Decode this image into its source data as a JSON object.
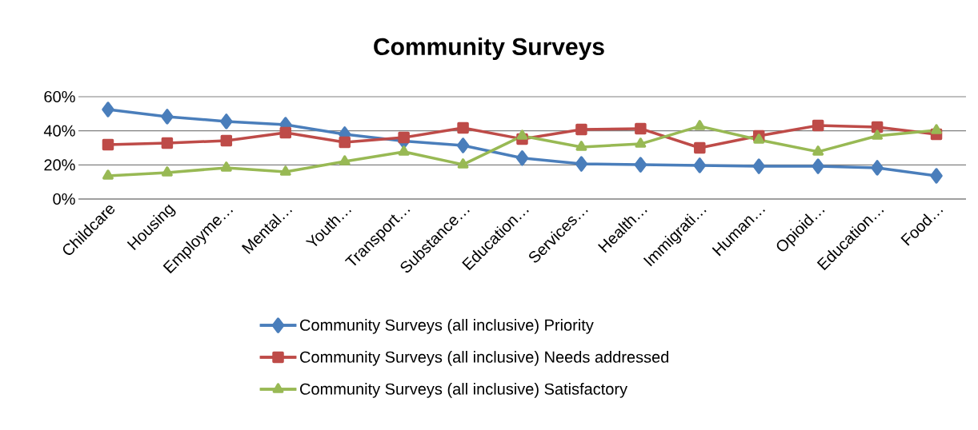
{
  "chart_data": {
    "type": "line",
    "title": "Community Surveys",
    "categories": [
      "Childcare",
      "Housing",
      "Employme…",
      "Mental…",
      "Youth…",
      "Transport…",
      "Substance…",
      "Education…",
      "Services…",
      "Health…",
      "Immigrati…",
      "Human…",
      "Opioid…",
      "Education…",
      "Food…"
    ],
    "series": [
      {
        "name": "Community Surveys (all inclusive) Priority",
        "color": "#4a7ebb",
        "marker": "diamond",
        "values": [
          52.5,
          48.3,
          45.5,
          43.6,
          38,
          34,
          31.4,
          24,
          20.6,
          20.1,
          19.7,
          19.2,
          19.2,
          18.3,
          13.6
        ]
      },
      {
        "name": "Community Surveys (all inclusive) Needs addressed",
        "color": "#be4b48",
        "marker": "square",
        "values": [
          31.9,
          32.8,
          34.2,
          38.9,
          33.3,
          36.1,
          41.7,
          35.2,
          40.8,
          41.3,
          30,
          37,
          43.1,
          42.2,
          38
        ]
      },
      {
        "name": "Community Surveys (all inclusive) Satisfactory",
        "color": "#98b954",
        "marker": "triangle",
        "values": [
          13.6,
          15.5,
          18.3,
          15.9,
          22,
          27.7,
          20.2,
          37,
          30.5,
          32.3,
          42.7,
          34.7,
          27.7,
          37,
          40.3
        ]
      }
    ],
    "ylim": [
      0,
      60
    ],
    "yticks": [
      {
        "value": 0,
        "label": "0%"
      },
      {
        "value": 20,
        "label": "20%"
      },
      {
        "value": 40,
        "label": "40%"
      },
      {
        "value": 60,
        "label": "60%"
      }
    ],
    "grid": "y",
    "legend": "bottom",
    "line_style": "solid"
  }
}
